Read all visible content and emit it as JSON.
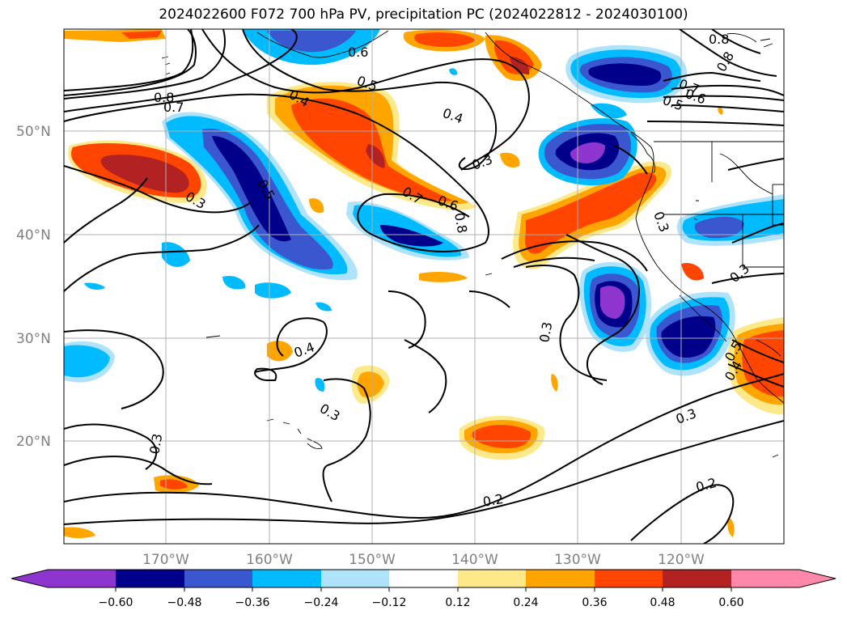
{
  "title": "2024022600 F072 700 hPa PV, precipitation PC (2024022812 - 2024030100)",
  "map": {
    "lat_labels": [
      "50°N",
      "40°N",
      "30°N",
      "20°N"
    ],
    "lon_labels": [
      "170°W",
      "160°W",
      "150°W",
      "140°W",
      "130°W",
      "120°W"
    ],
    "contour_labels": [
      "0.6",
      "0.8",
      "0.8",
      "0.5",
      "0.7",
      "0.4",
      "0.5",
      "0.6",
      "0.8",
      "0.7",
      "0.4",
      "0.3",
      "0.5",
      "0.7",
      "0.6",
      "0.8",
      "0.3",
      "0.3",
      "0.3",
      "0.4",
      "0.3",
      "0.5",
      "0.4",
      "0.3",
      "0.3",
      "0.2",
      "0.2"
    ]
  },
  "colorbar": {
    "ticks": [
      "−0.60",
      "−0.48",
      "−0.36",
      "−0.24",
      "−0.12",
      "0.12",
      "0.24",
      "0.36",
      "0.48",
      "0.60"
    ],
    "colors": [
      "#8e35d0",
      "#00008b",
      "#3a57d0",
      "#00bbff",
      "#aee3fb",
      "#ffffff",
      "#fde98a",
      "#ffa500",
      "#ff4500",
      "#b22222",
      "#ff88aa"
    ]
  }
}
